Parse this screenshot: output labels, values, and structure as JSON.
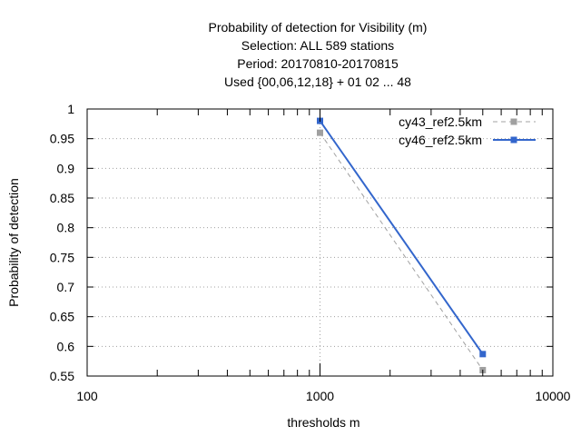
{
  "chart_data": {
    "type": "line",
    "title_lines": [
      "Probability of detection  for Visibility (m)",
      "Selection: ALL    589 stations",
      "Period: 20170810-20170815",
      "Used {00,06,12,18} + 01 02 ... 48"
    ],
    "xlabel": "thresholds m",
    "ylabel": "Probability of detection",
    "x_scale": "log",
    "xlim": [
      100,
      10000
    ],
    "ylim": [
      0.55,
      1.0
    ],
    "x_ticks": [
      100,
      1000,
      10000
    ],
    "x_tick_labels": [
      "100",
      "1000",
      "10000"
    ],
    "y_ticks": [
      0.55,
      0.6,
      0.65,
      0.7,
      0.75,
      0.8,
      0.85,
      0.9,
      0.95,
      1.0
    ],
    "y_tick_labels": [
      "0.55",
      "0.6",
      "0.65",
      "0.7",
      "0.75",
      "0.8",
      "0.85",
      "0.9",
      "0.95",
      "1"
    ],
    "grid": true,
    "legend_position": "top-right",
    "series": [
      {
        "name": "cy43_ref2.5km",
        "color": "#a0a0a0",
        "style": "dashed",
        "x": [
          1000,
          5000
        ],
        "y": [
          0.96,
          0.56
        ]
      },
      {
        "name": "cy46_ref2.5km",
        "color": "#3366cc",
        "style": "solid",
        "x": [
          1000,
          5000
        ],
        "y": [
          0.98,
          0.587
        ]
      }
    ]
  }
}
